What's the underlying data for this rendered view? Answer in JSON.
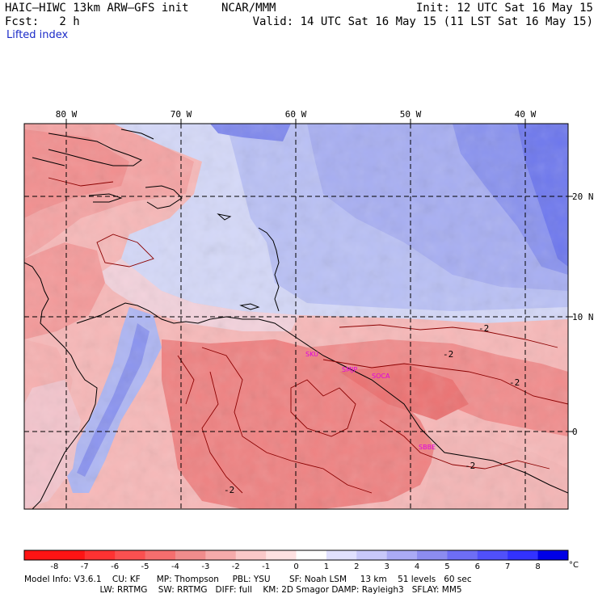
{
  "header": {
    "model": "HAIC–HIWC 13km ARW–GFS init",
    "org": "NCAR/MMM",
    "init": "Init: 12 UTC Sat 16 May 15",
    "fcst": "Fcst:   2 h",
    "valid": "Valid: 14 UTC Sat 16 May 15 (11 LST Sat 16 May 15)",
    "field": "Lifted index"
  },
  "map": {
    "lon_labels": [
      "80 W",
      "70 W",
      "60 W",
      "50 W",
      "40 W"
    ],
    "lat_labels": [
      "20 N",
      "10 N",
      "0"
    ],
    "contour_labels": [
      "-2",
      "-2",
      "-2",
      "-2",
      "-2"
    ],
    "stations": [
      "SKU",
      "SMJP",
      "SOCA",
      "SBBE"
    ],
    "colors": {
      "negative": "#f03030",
      "positive": "#3030f0",
      "land_contour": "#8b0000"
    }
  },
  "colorbar": {
    "labels": [
      "-8",
      "-7",
      "-6",
      "-5",
      "-4",
      "-3",
      "-2",
      "-1",
      "0",
      "1",
      "2",
      "3",
      "4",
      "5",
      "6",
      "7",
      "8"
    ],
    "unit": "°C",
    "colors": [
      "#ff1414",
      "#ff3232",
      "#fa5050",
      "#f56e6e",
      "#f08c8c",
      "#f5aaaa",
      "#fac8c8",
      "#ffe1e1",
      "#ffffff",
      "#e1e1ff",
      "#c8c8fa",
      "#aaaaf5",
      "#8c8cf0",
      "#6e6ef5",
      "#5050fa",
      "#3232ff",
      "#1414ff"
    ]
  },
  "model_info": {
    "line1": "Model Info: V3.6.1    CU: KF      MP: Thompson     PBL: YSU       SF: Noah LSM     13 km    51 levels   60 sec",
    "line2": "                            LW: RRTMG    SW: RRTMG   DIFF: full    KM: 2D Smagor DAMP: Rayleigh3   SFLAY: MM5"
  }
}
